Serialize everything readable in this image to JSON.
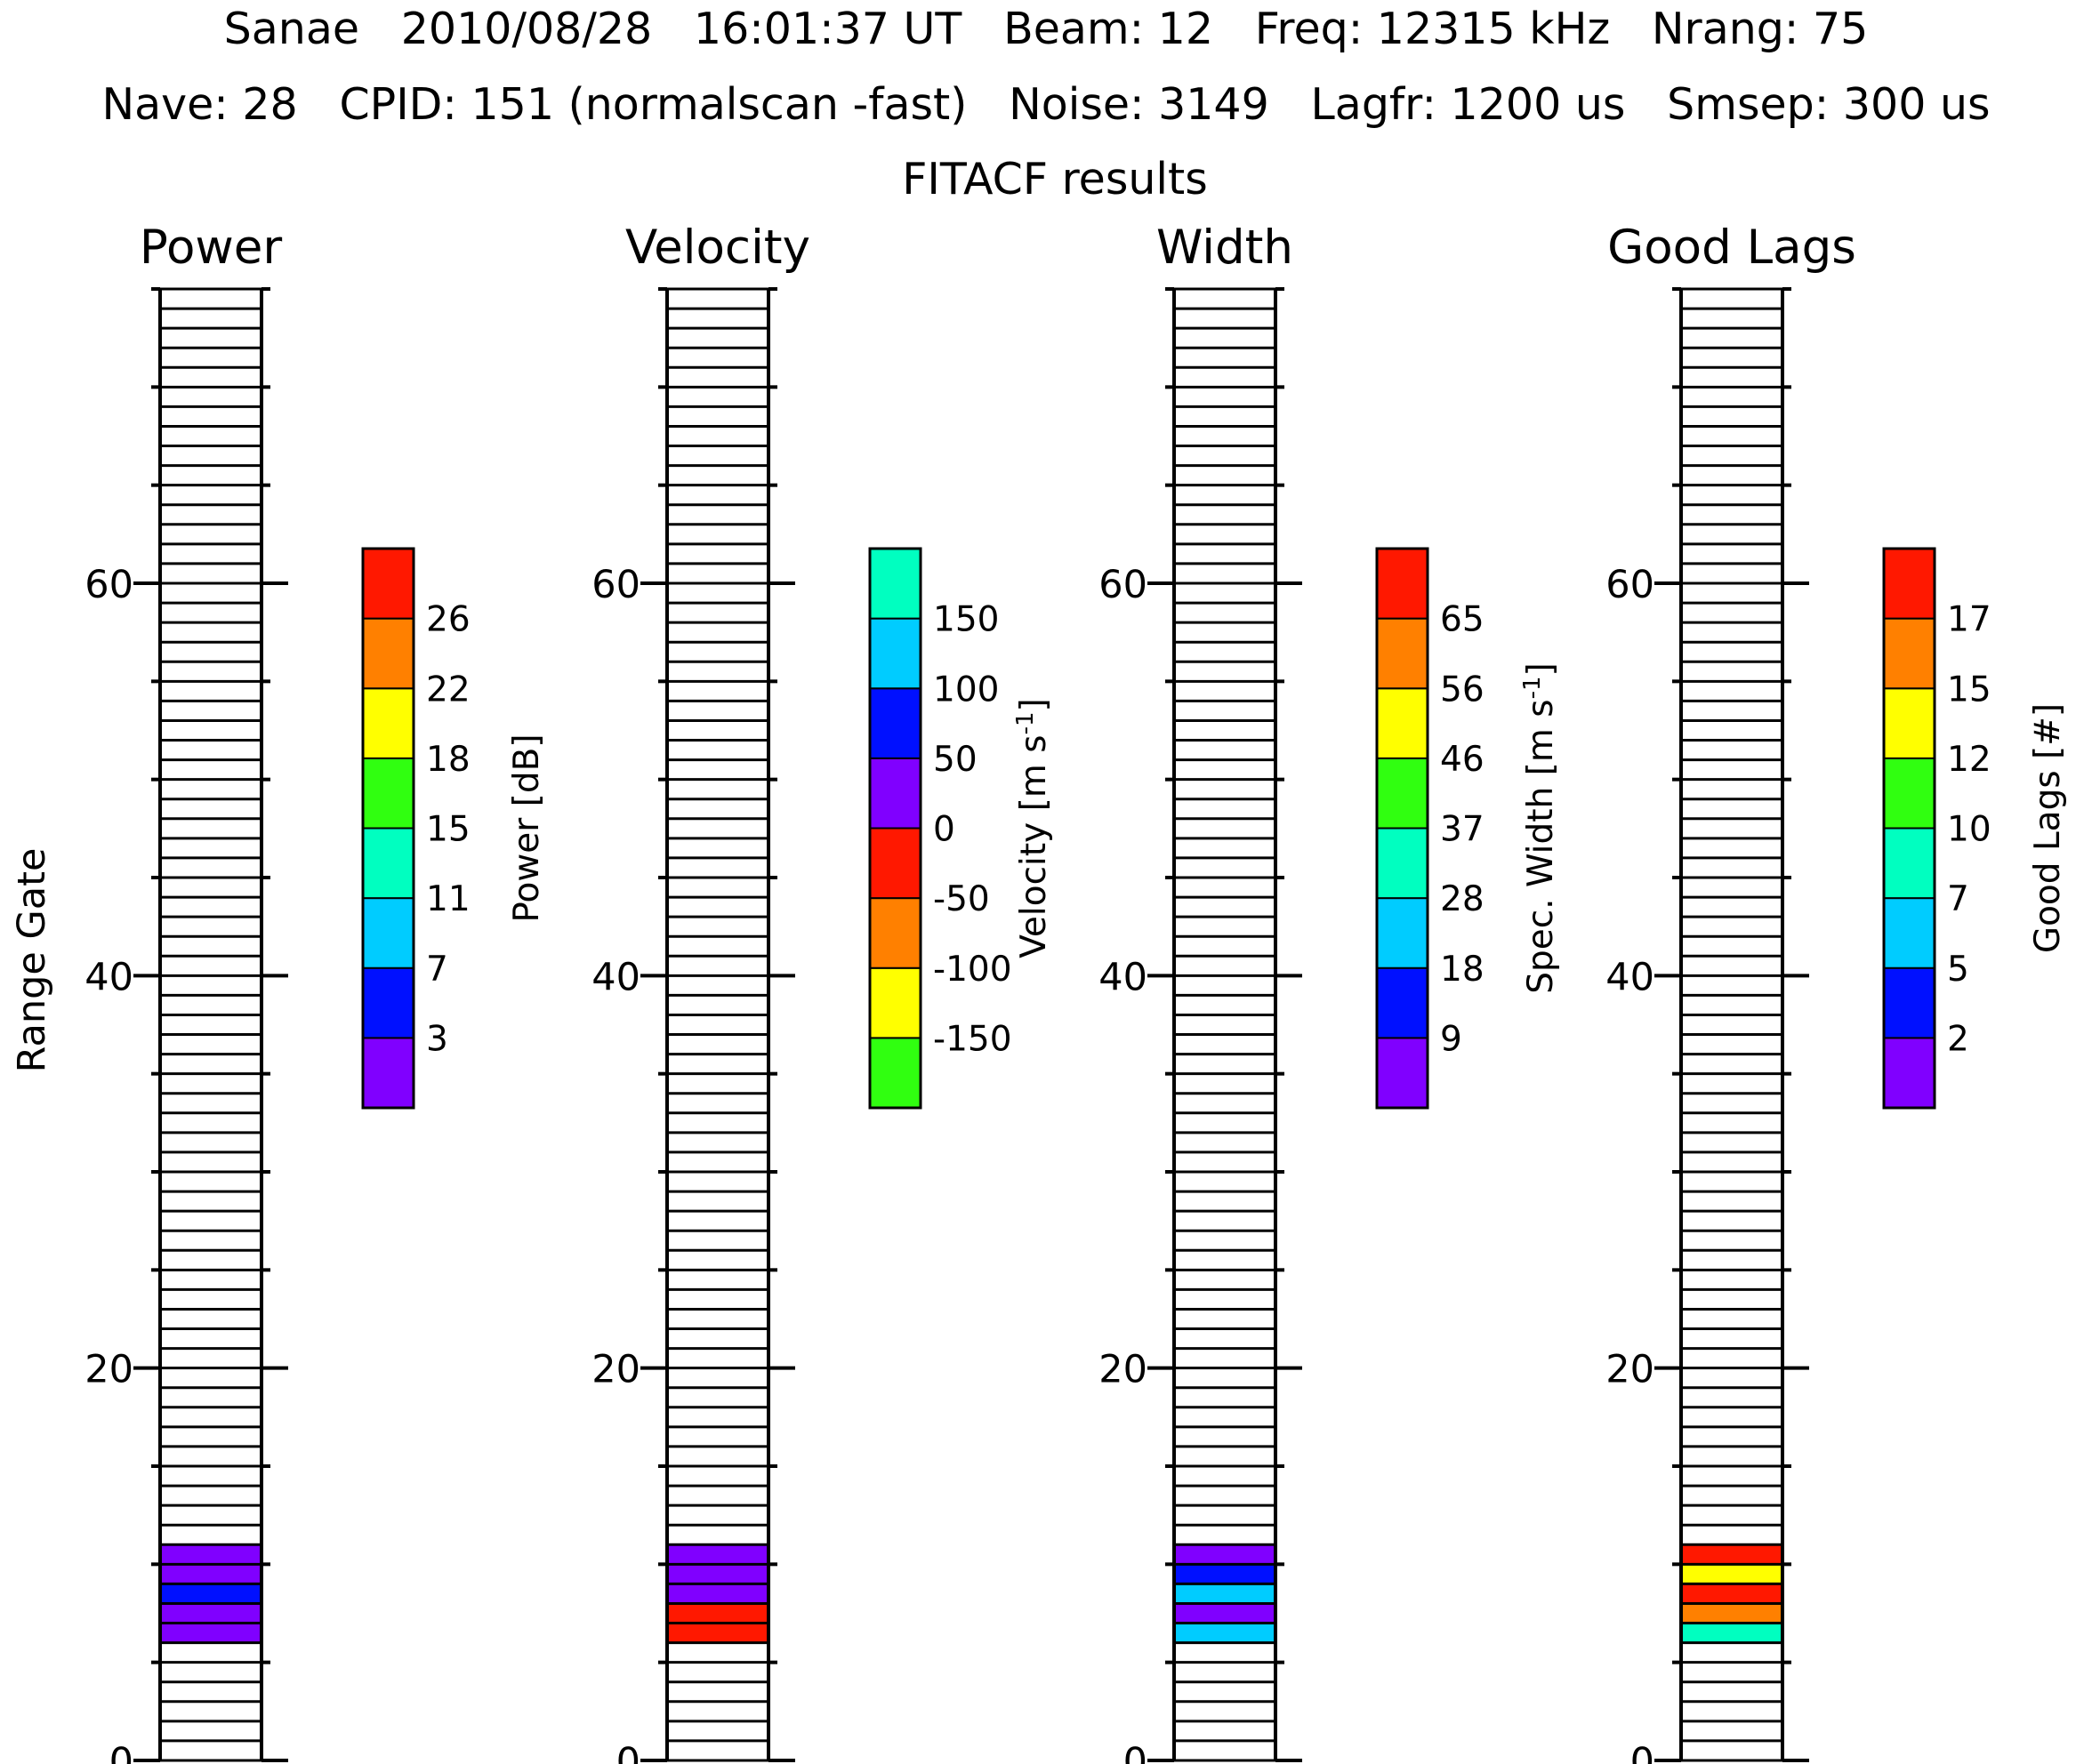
{
  "header": {
    "line1": "Sanae   2010/08/28   16:01:37 UT   Beam: 12   Freq: 12315 kHz   Nrang: 75",
    "line2": "Nave: 28   CPID: 151 (normalscan -fast)   Noise: 3149   Lagfr: 1200 us   Smsep: 300 us",
    "line3": "FITACF results"
  },
  "y_axis": {
    "label": "Range Gate",
    "range": [
      0,
      75
    ],
    "major_ticks": [
      "0",
      "20",
      "40",
      "60"
    ]
  },
  "chart_data": [
    {
      "type": "heatmap",
      "title": "Power",
      "ylabel": "Range Gate",
      "ylim": [
        0,
        75
      ],
      "nrang": 75,
      "colorbar": {
        "label": "Power [dB]",
        "ticks": [
          "3",
          "7",
          "11",
          "15",
          "18",
          "22",
          "26"
        ],
        "colors": [
          "#8000ff",
          "#0010ff",
          "#00ccff",
          "#00ffc0",
          "#30ff10",
          "#ffff00",
          "#ff8000",
          "#ff1800"
        ]
      },
      "cells": [
        {
          "gate": 6,
          "color": "#8000ff"
        },
        {
          "gate": 7,
          "color": "#8000ff"
        },
        {
          "gate": 8,
          "color": "#0010ff"
        },
        {
          "gate": 9,
          "color": "#8000ff"
        },
        {
          "gate": 10,
          "color": "#8000ff"
        }
      ]
    },
    {
      "type": "heatmap",
      "title": "Velocity",
      "ylabel": "",
      "ylim": [
        0,
        75
      ],
      "nrang": 75,
      "colorbar": {
        "label": "Velocity [m s-1]",
        "ticks": [
          "-150",
          "-100",
          "-50",
          "0",
          "50",
          "100",
          "150"
        ],
        "colors": [
          "#30ff10",
          "#ffff00",
          "#ff8000",
          "#ff1800",
          "#8000ff",
          "#0010ff",
          "#00ccff",
          "#00ffc0"
        ]
      },
      "cells": [
        {
          "gate": 6,
          "color": "#ff1800"
        },
        {
          "gate": 7,
          "color": "#ff1800"
        },
        {
          "gate": 8,
          "color": "#8000ff"
        },
        {
          "gate": 9,
          "color": "#8000ff"
        },
        {
          "gate": 10,
          "color": "#8000ff"
        }
      ]
    },
    {
      "type": "heatmap",
      "title": "Width",
      "ylabel": "",
      "ylim": [
        0,
        75
      ],
      "nrang": 75,
      "colorbar": {
        "label": "Spec. Width [m s-1]",
        "ticks": [
          "9",
          "18",
          "28",
          "37",
          "46",
          "56",
          "65"
        ],
        "colors": [
          "#8000ff",
          "#0010ff",
          "#00ccff",
          "#00ffc0",
          "#30ff10",
          "#ffff00",
          "#ff8000",
          "#ff1800"
        ]
      },
      "cells": [
        {
          "gate": 6,
          "color": "#00ccff"
        },
        {
          "gate": 7,
          "color": "#8000ff"
        },
        {
          "gate": 8,
          "color": "#00ccff"
        },
        {
          "gate": 9,
          "color": "#0010ff"
        },
        {
          "gate": 10,
          "color": "#8000ff"
        }
      ]
    },
    {
      "type": "heatmap",
      "title": "Good Lags",
      "ylabel": "",
      "ylim": [
        0,
        75
      ],
      "nrang": 75,
      "colorbar": {
        "label": "Good Lags [#]",
        "ticks": [
          "2",
          "5",
          "7",
          "10",
          "12",
          "15",
          "17"
        ],
        "colors": [
          "#8000ff",
          "#0010ff",
          "#00ccff",
          "#00ffc0",
          "#30ff10",
          "#ffff00",
          "#ff8000",
          "#ff1800"
        ]
      },
      "cells": [
        {
          "gate": 6,
          "color": "#00ffc0"
        },
        {
          "gate": 7,
          "color": "#ff8000"
        },
        {
          "gate": 8,
          "color": "#ff1800"
        },
        {
          "gate": 9,
          "color": "#ffff00"
        },
        {
          "gate": 10,
          "color": "#ff1800"
        }
      ]
    }
  ]
}
